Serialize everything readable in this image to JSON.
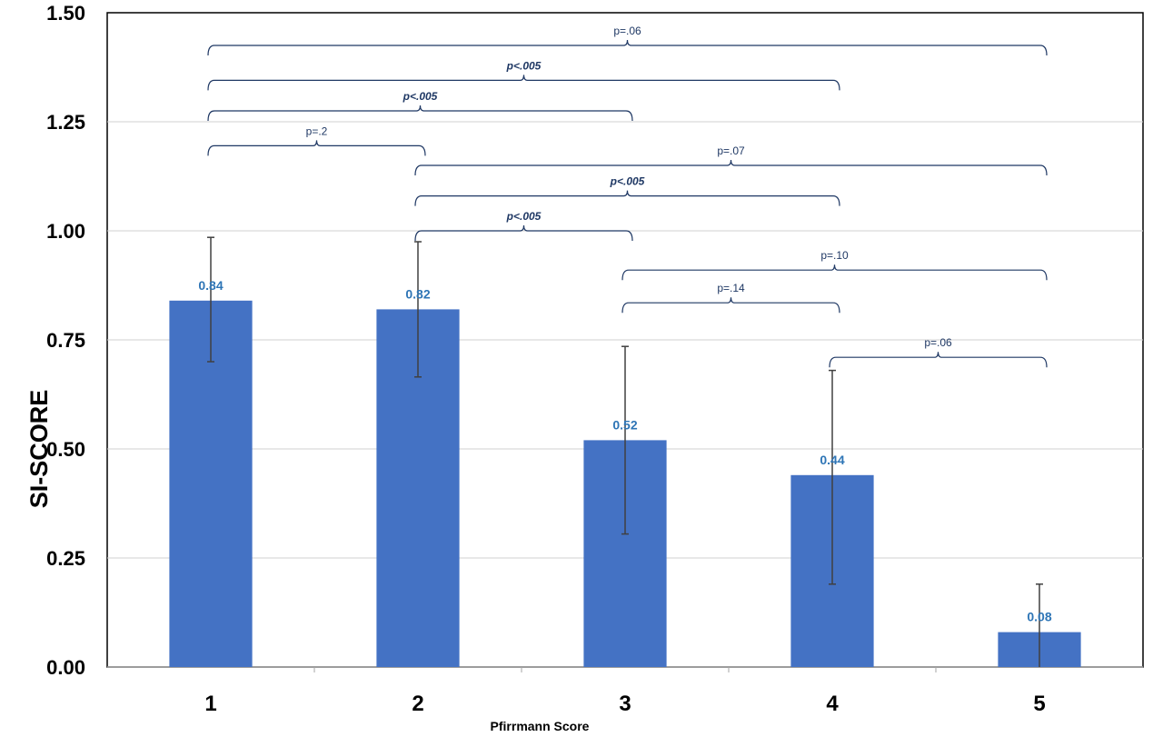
{
  "chart_data": {
    "type": "bar",
    "title": "",
    "xlabel": "Pfirrmann Score",
    "ylabel": "SI-SCORE",
    "categories": [
      "1",
      "2",
      "3",
      "4",
      "5"
    ],
    "values": [
      0.84,
      0.82,
      0.52,
      0.44,
      0.08
    ],
    "value_labels": [
      "0.84",
      "0.82",
      "0.52",
      "0.44",
      "0.08"
    ],
    "error_bars": [
      {
        "low": 0.7,
        "high": 0.985
      },
      {
        "low": 0.665,
        "high": 0.975
      },
      {
        "low": 0.305,
        "high": 0.735
      },
      {
        "low": 0.19,
        "high": 0.68
      },
      {
        "low": 0.0,
        "high": 0.19
      }
    ],
    "ylim": [
      0,
      1.5
    ],
    "yticks": [
      "0.00",
      "0.25",
      "0.50",
      "0.75",
      "1.00",
      "1.25",
      "1.50"
    ],
    "ytick_values": [
      0,
      0.25,
      0.5,
      0.75,
      1.0,
      1.25,
      1.5
    ],
    "grid": true,
    "bar_color": "#4472c4",
    "label_color": "#2e75b6",
    "error_color": "#404040",
    "comparisons": [
      {
        "from": "1",
        "to": "5",
        "label": "p=.06",
        "bold": false,
        "level": 1.425
      },
      {
        "from": "1",
        "to": "4",
        "label": "p<.005",
        "bold": true,
        "level": 1.345
      },
      {
        "from": "1",
        "to": "3",
        "label": "p<.005",
        "bold": true,
        "level": 1.275
      },
      {
        "from": "1",
        "to": "2",
        "label": "p=.2",
        "bold": false,
        "level": 1.195
      },
      {
        "from": "2",
        "to": "5",
        "label": "p=.07",
        "bold": false,
        "level": 1.15
      },
      {
        "from": "2",
        "to": "4",
        "label": "p<.005",
        "bold": true,
        "level": 1.08
      },
      {
        "from": "2",
        "to": "3",
        "label": "p<.005",
        "bold": true,
        "level": 1.0
      },
      {
        "from": "3",
        "to": "5",
        "label": "p=.10",
        "bold": false,
        "level": 0.91
      },
      {
        "from": "3",
        "to": "4",
        "label": "p=.14",
        "bold": false,
        "level": 0.835
      },
      {
        "from": "4",
        "to": "5",
        "label": "p=.06",
        "bold": false,
        "level": 0.71
      }
    ]
  }
}
